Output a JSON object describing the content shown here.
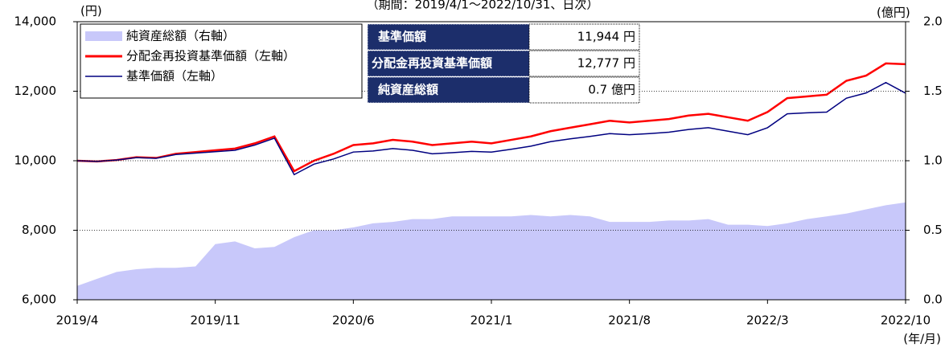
{
  "chart_data": {
    "type": "line",
    "subtitle": "（期間：2019/4/1～2022/10/31、日次）",
    "y_unit": "(円)",
    "y2_unit": "(億円)",
    "x_unit": "(年/月)",
    "categories": [
      "2019/4",
      null,
      null,
      null,
      null,
      null,
      null,
      "2019/11",
      null,
      null,
      null,
      null,
      null,
      null,
      "2020/6",
      null,
      null,
      null,
      null,
      null,
      null,
      "2021/1",
      null,
      null,
      null,
      null,
      null,
      null,
      "2021/8",
      null,
      null,
      null,
      null,
      null,
      null,
      "2022/3",
      null,
      null,
      null,
      null,
      null,
      null,
      "2022/10"
    ],
    "ylim": [
      6000,
      14000
    ],
    "yticks": [
      {
        "value": 6000,
        "label": "6,000"
      },
      {
        "value": 8000,
        "label": "8,000"
      },
      {
        "value": 10000,
        "label": "10,000"
      },
      {
        "value": 12000,
        "label": "12,000"
      },
      {
        "value": 14000,
        "label": "14,000"
      }
    ],
    "y2lim": [
      0,
      2
    ],
    "y2ticks": [
      {
        "value": 0,
        "label": "0.0"
      },
      {
        "value": 0.5,
        "label": "0.5"
      },
      {
        "value": 1,
        "label": "1.0"
      },
      {
        "value": 1.5,
        "label": "1.5"
      },
      {
        "value": 2,
        "label": "2.0"
      }
    ],
    "grid": true,
    "series": [
      {
        "name": "純資産総額（右軸）",
        "color": "#c8c8fa",
        "kind": "area",
        "axis": "y2",
        "values": [
          0.1,
          0.15,
          0.2,
          0.22,
          0.23,
          0.23,
          0.24,
          0.4,
          0.42,
          0.37,
          0.38,
          0.45,
          0.5,
          0.5,
          0.52,
          0.55,
          0.56,
          0.58,
          0.58,
          0.6,
          0.6,
          0.6,
          0.6,
          0.61,
          0.6,
          0.61,
          0.6,
          0.56,
          0.56,
          0.56,
          0.57,
          0.57,
          0.58,
          0.54,
          0.54,
          0.53,
          0.55,
          0.58,
          0.6,
          0.62,
          0.65,
          0.68,
          0.7
        ]
      },
      {
        "name": "分配金再投資基準価額（左軸）",
        "color": "#ff0000",
        "kind": "line",
        "values": [
          10000,
          9980,
          10020,
          10100,
          10080,
          10200,
          10250,
          10300,
          10350,
          10500,
          10700,
          9700,
          10000,
          10200,
          10450,
          10500,
          10600,
          10550,
          10450,
          10500,
          10550,
          10500,
          10600,
          10700,
          10850,
          10950,
          11050,
          11150,
          11100,
          11150,
          11200,
          11300,
          11350,
          11250,
          11150,
          11400,
          11800,
          11850,
          11900,
          12300,
          12450,
          12800,
          12777
        ]
      },
      {
        "name": "基準価額（左軸）",
        "color": "#000080",
        "kind": "line",
        "values": [
          10000,
          9980,
          10020,
          10090,
          10070,
          10180,
          10220,
          10260,
          10300,
          10450,
          10650,
          9600,
          9900,
          10050,
          10250,
          10280,
          10350,
          10300,
          10200,
          10230,
          10270,
          10250,
          10330,
          10420,
          10550,
          10630,
          10700,
          10780,
          10750,
          10780,
          10820,
          10900,
          10950,
          10850,
          10750,
          10950,
          11350,
          11380,
          11400,
          11800,
          11950,
          12250,
          11944
        ]
      }
    ],
    "info_table": [
      [
        "基準価額",
        "11,944 円"
      ],
      [
        "分配金再投資基準価額",
        "12,777 円"
      ],
      [
        "純資産総額",
        "0.7 億円"
      ]
    ]
  }
}
